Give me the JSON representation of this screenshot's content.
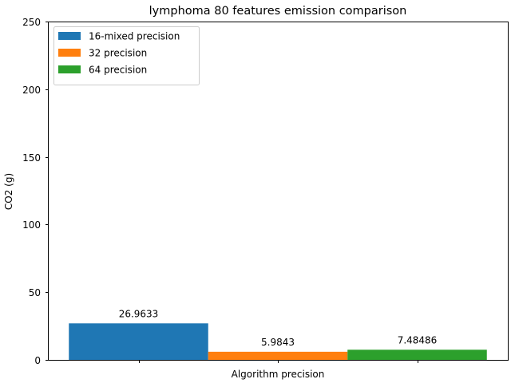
{
  "chart_data": {
    "type": "bar",
    "title": "lymphoma 80 features emission comparison",
    "xlabel": "Algorithm precision",
    "ylabel": "CO2 (g)",
    "ylim": [
      0,
      250
    ],
    "yticks": [
      0,
      50,
      100,
      150,
      200,
      250
    ],
    "grid": false,
    "legend_position": "top-left",
    "series": [
      {
        "name": "16-mixed precision",
        "value": 26.9633,
        "label": "26.9633",
        "color": "#1f77b4"
      },
      {
        "name": "32 precision",
        "value": 5.9843,
        "label": "5.9843",
        "color": "#ff7f0e"
      },
      {
        "name": "64 precision",
        "value": 7.48486,
        "label": "7.48486",
        "color": "#2ca02c"
      }
    ]
  }
}
